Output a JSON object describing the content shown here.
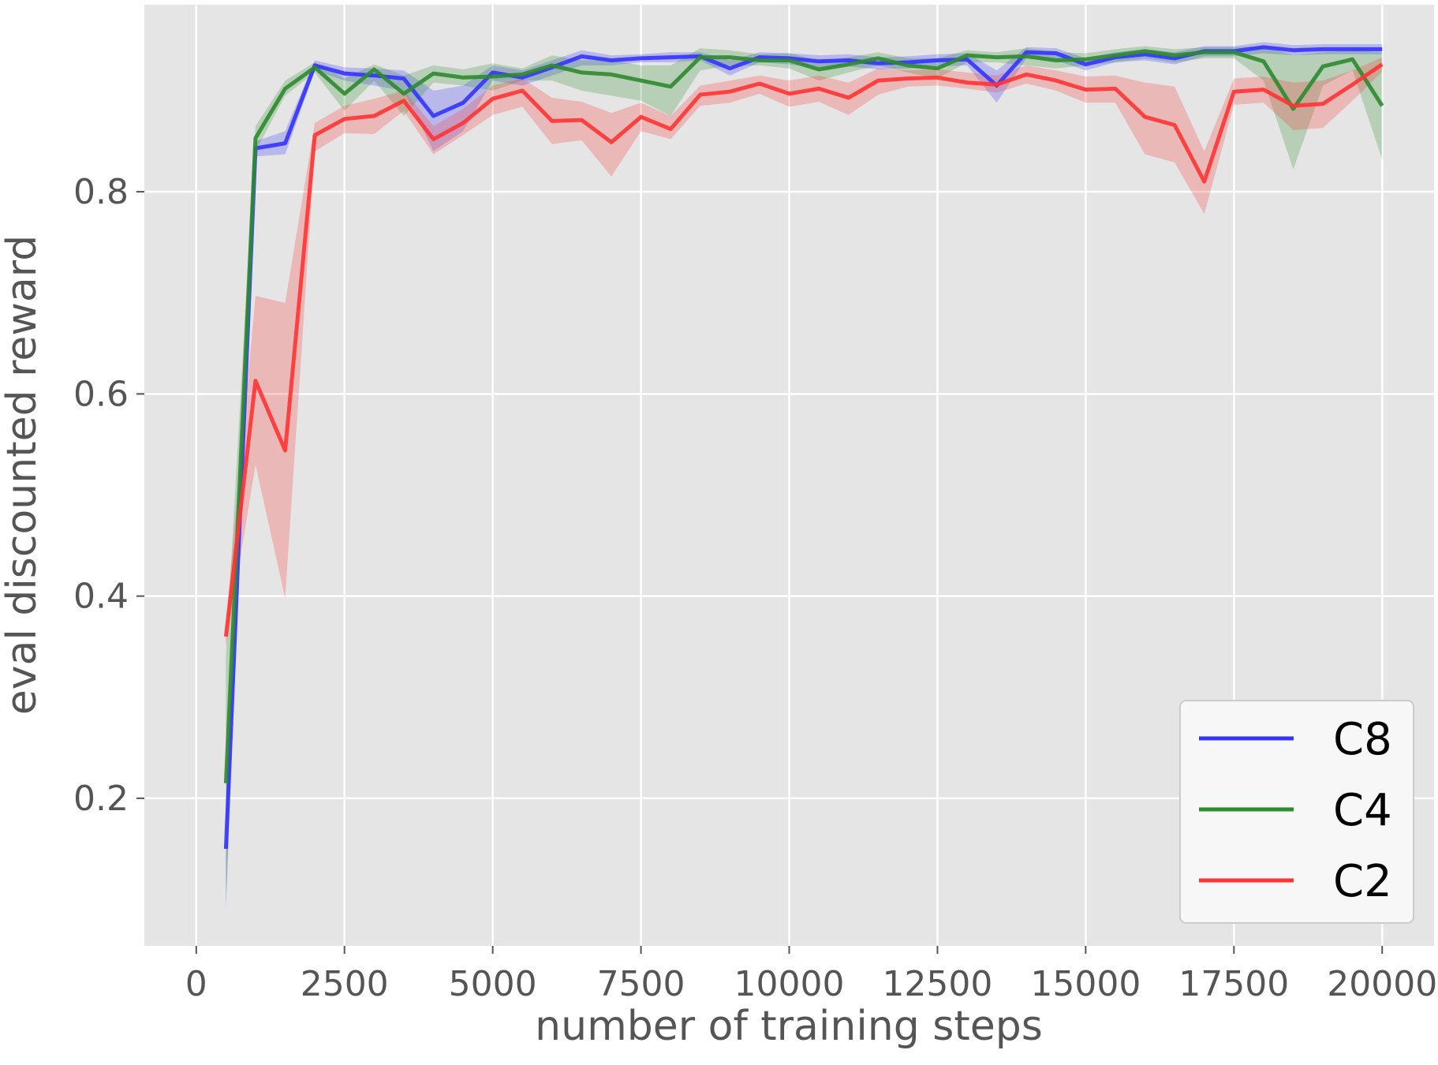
{
  "chart_data": {
    "type": "line",
    "xlabel": "number of training steps",
    "ylabel": "eval discounted reward",
    "xlim": [
      -875,
      20875
    ],
    "ylim": [
      0.054,
      0.985
    ],
    "xticks": [
      0,
      2500,
      5000,
      7500,
      10000,
      12500,
      15000,
      17500,
      20000
    ],
    "xtick_labels": [
      "0",
      "2500",
      "5000",
      "7500",
      "10000",
      "12500",
      "15000",
      "17500",
      "20000"
    ],
    "yticks": [
      0.2,
      0.4,
      0.6,
      0.8
    ],
    "ytick_labels": [
      "0.2",
      "0.4",
      "0.6",
      "0.8"
    ],
    "grid": true,
    "legend_position": "bottom-right",
    "background": "#e5e5e5",
    "x": [
      500,
      1000,
      1500,
      2000,
      2500,
      3000,
      3500,
      4000,
      4500,
      5000,
      5500,
      6000,
      6500,
      7000,
      7500,
      8000,
      8500,
      9000,
      9500,
      10000,
      10500,
      11000,
      11500,
      12000,
      12500,
      13000,
      13500,
      14000,
      14500,
      15000,
      15500,
      16000,
      16500,
      17000,
      17500,
      18000,
      18500,
      19000,
      19500,
      20000
    ],
    "series": [
      {
        "name": "C8",
        "color": "#3333ff",
        "values": [
          0.15,
          0.843,
          0.848,
          0.925,
          0.917,
          0.915,
          0.912,
          0.875,
          0.888,
          0.918,
          0.913,
          0.923,
          0.934,
          0.93,
          0.932,
          0.933,
          0.934,
          0.922,
          0.933,
          0.932,
          0.929,
          0.93,
          0.927,
          0.928,
          0.93,
          0.931,
          0.905,
          0.938,
          0.937,
          0.926,
          0.933,
          0.936,
          0.932,
          0.939,
          0.939,
          0.943,
          0.94,
          0.941,
          0.941,
          0.941
        ],
        "lower": [
          0.09,
          0.835,
          0.837,
          0.92,
          0.91,
          0.905,
          0.9,
          0.84,
          0.86,
          0.91,
          0.905,
          0.915,
          0.925,
          0.925,
          0.928,
          0.928,
          0.93,
          0.915,
          0.928,
          0.926,
          0.922,
          0.924,
          0.921,
          0.922,
          0.924,
          0.925,
          0.888,
          0.932,
          0.93,
          0.92,
          0.928,
          0.93,
          0.926,
          0.934,
          0.934,
          0.937,
          0.935,
          0.936,
          0.936,
          0.936
        ],
        "upper": [
          0.19,
          0.85,
          0.86,
          0.93,
          0.923,
          0.922,
          0.92,
          0.9,
          0.905,
          0.925,
          0.92,
          0.93,
          0.94,
          0.935,
          0.936,
          0.938,
          0.938,
          0.93,
          0.938,
          0.937,
          0.935,
          0.936,
          0.933,
          0.934,
          0.936,
          0.937,
          0.92,
          0.943,
          0.942,
          0.932,
          0.938,
          0.941,
          0.938,
          0.944,
          0.944,
          0.948,
          0.945,
          0.946,
          0.946,
          0.946
        ]
      },
      {
        "name": "C4",
        "color": "#2e8b2e",
        "values": [
          0.215,
          0.853,
          0.902,
          0.923,
          0.897,
          0.921,
          0.897,
          0.917,
          0.913,
          0.914,
          0.916,
          0.925,
          0.918,
          0.916,
          0.91,
          0.904,
          0.933,
          0.933,
          0.93,
          0.93,
          0.921,
          0.926,
          0.932,
          0.925,
          0.922,
          0.935,
          0.933,
          0.934,
          0.93,
          0.931,
          0.935,
          0.939,
          0.935,
          0.938,
          0.938,
          0.929,
          0.882,
          0.924,
          0.931,
          0.885
        ],
        "lower": [
          0.1,
          0.84,
          0.895,
          0.918,
          0.88,
          0.91,
          0.875,
          0.908,
          0.905,
          0.9,
          0.91,
          0.91,
          0.9,
          0.895,
          0.89,
          0.875,
          0.92,
          0.925,
          0.925,
          0.922,
          0.91,
          0.918,
          0.925,
          0.918,
          0.912,
          0.928,
          0.928,
          0.925,
          0.922,
          0.925,
          0.928,
          0.932,
          0.928,
          0.932,
          0.932,
          0.91,
          0.822,
          0.905,
          0.92,
          0.832
        ],
        "upper": [
          0.34,
          0.865,
          0.91,
          0.928,
          0.912,
          0.926,
          0.915,
          0.925,
          0.921,
          0.927,
          0.922,
          0.935,
          0.93,
          0.93,
          0.925,
          0.925,
          0.942,
          0.94,
          0.936,
          0.937,
          0.93,
          0.933,
          0.938,
          0.932,
          0.932,
          0.94,
          0.938,
          0.942,
          0.938,
          0.937,
          0.941,
          0.944,
          0.941,
          0.943,
          0.943,
          0.944,
          0.935,
          0.938,
          0.94,
          0.938
        ]
      },
      {
        "name": "C2",
        "color": "#ff3333",
        "values": [
          0.36,
          0.613,
          0.544,
          0.856,
          0.872,
          0.875,
          0.89,
          0.852,
          0.868,
          0.892,
          0.9,
          0.87,
          0.871,
          0.849,
          0.874,
          0.862,
          0.896,
          0.899,
          0.907,
          0.897,
          0.902,
          0.893,
          0.91,
          0.912,
          0.913,
          0.908,
          0.906,
          0.916,
          0.91,
          0.901,
          0.902,
          0.874,
          0.866,
          0.81,
          0.899,
          0.901,
          0.885,
          0.887,
          0.906,
          0.926
        ],
        "lower": [
          0.35,
          0.53,
          0.398,
          0.84,
          0.858,
          0.857,
          0.88,
          0.837,
          0.856,
          0.876,
          0.884,
          0.847,
          0.851,
          0.815,
          0.86,
          0.852,
          0.885,
          0.888,
          0.897,
          0.884,
          0.889,
          0.876,
          0.896,
          0.904,
          0.905,
          0.902,
          0.898,
          0.907,
          0.9,
          0.888,
          0.888,
          0.837,
          0.829,
          0.778,
          0.886,
          0.888,
          0.861,
          0.863,
          0.89,
          0.919
        ],
        "upper": [
          0.375,
          0.697,
          0.69,
          0.868,
          0.885,
          0.892,
          0.9,
          0.865,
          0.882,
          0.905,
          0.912,
          0.893,
          0.889,
          0.878,
          0.888,
          0.875,
          0.905,
          0.91,
          0.915,
          0.91,
          0.915,
          0.908,
          0.922,
          0.92,
          0.921,
          0.918,
          0.915,
          0.925,
          0.92,
          0.914,
          0.915,
          0.908,
          0.904,
          0.84,
          0.912,
          0.914,
          0.908,
          0.91,
          0.92,
          0.933
        ]
      }
    ]
  }
}
